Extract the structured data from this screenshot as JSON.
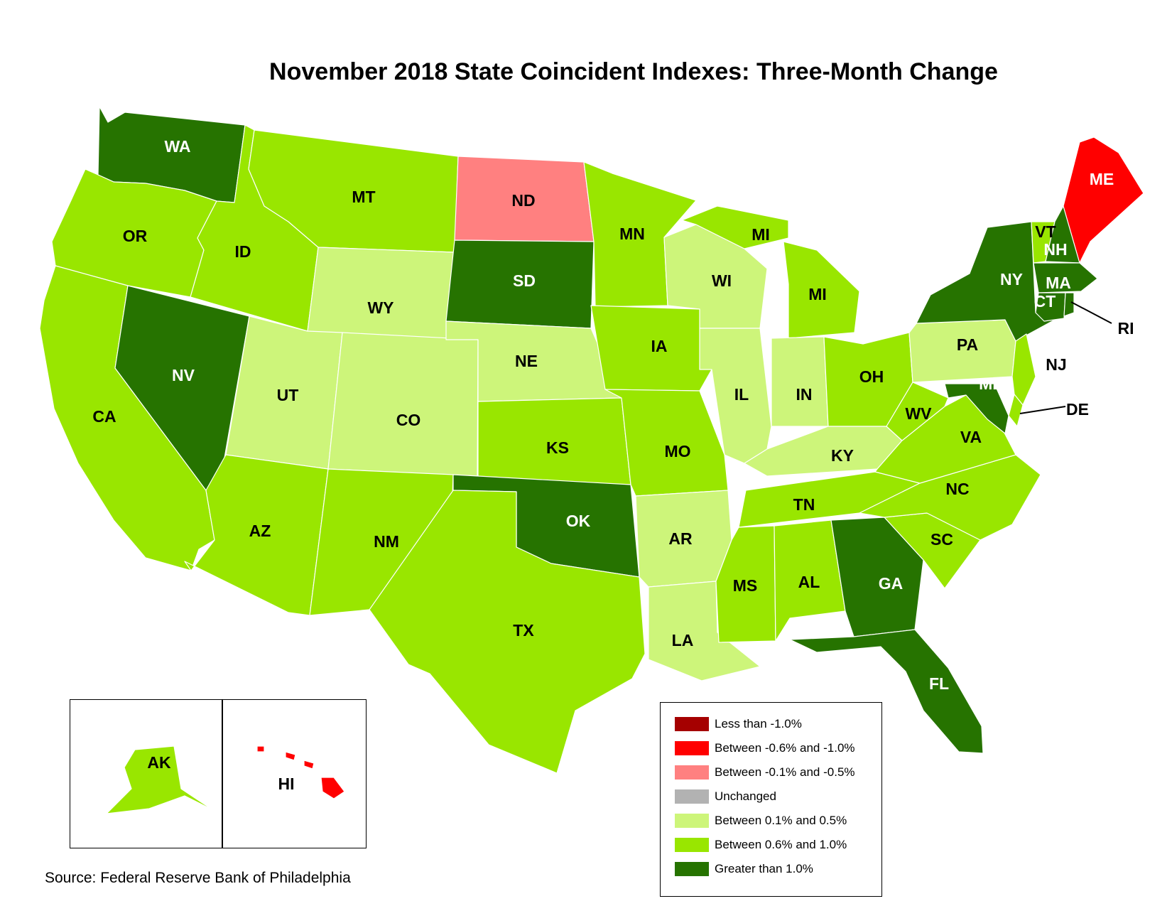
{
  "title": "November 2018 State Coincident Indexes: Three-Month Change",
  "source": "Source: Federal Reserve Bank of Philadelphia",
  "colors": {
    "lt_neg1": "#a50000",
    "neg06_neg1": "#ff0000",
    "neg01_neg05": "#ff8080",
    "unchanged": "#b2b2b2",
    "p01_p05": "#cdf57a",
    "p06_p1": "#99e600",
    "gt1": "#267300"
  },
  "legend": [
    {
      "label": "Less than -1.0%",
      "color": "#a50000"
    },
    {
      "label": "Between -0.6% and -1.0%",
      "color": "#ff0000"
    },
    {
      "label": "Between -0.1% and -0.5%",
      "color": "#ff8080"
    },
    {
      "label": "Unchanged",
      "color": "#b2b2b2"
    },
    {
      "label": "Between 0.1% and 0.5%",
      "color": "#cdf57a"
    },
    {
      "label": "Between 0.6% and 1.0%",
      "color": "#99e600"
    },
    {
      "label": "Greater than 1.0%",
      "color": "#267300"
    }
  ],
  "states": {
    "WA": "Greater than 1.0%",
    "OR": "Between 0.6% and 1.0%",
    "CA": "Between 0.6% and 1.0%",
    "ID": "Between 0.6% and 1.0%",
    "NV": "Greater than 1.0%",
    "MT": "Between 0.6% and 1.0%",
    "WY": "Between 0.1% and 0.5%",
    "UT": "Between 0.1% and 0.5%",
    "AZ": "Between 0.6% and 1.0%",
    "CO": "Between 0.1% and 0.5%",
    "NM": "Between 0.6% and 1.0%",
    "ND": "Between -0.1% and -0.5%",
    "SD": "Greater than 1.0%",
    "NE": "Between 0.1% and 0.5%",
    "KS": "Between 0.6% and 1.0%",
    "OK": "Greater than 1.0%",
    "TX": "Between 0.6% and 1.0%",
    "MN": "Between 0.6% and 1.0%",
    "IA": "Between 0.6% and 1.0%",
    "MO": "Between 0.6% and 1.0%",
    "AR": "Between 0.1% and 0.5%",
    "LA": "Between 0.1% and 0.5%",
    "WI": "Between 0.1% and 0.5%",
    "IL": "Between 0.1% and 0.5%",
    "MI": "Between 0.6% and 1.0%",
    "IN": "Between 0.1% and 0.5%",
    "OH": "Between 0.6% and 1.0%",
    "KY": "Between 0.1% and 0.5%",
    "TN": "Between 0.6% and 1.0%",
    "MS": "Between 0.6% and 1.0%",
    "AL": "Between 0.6% and 1.0%",
    "GA": "Greater than 1.0%",
    "FL": "Greater than 1.0%",
    "SC": "Between 0.6% and 1.0%",
    "NC": "Between 0.6% and 1.0%",
    "VA": "Between 0.6% and 1.0%",
    "WV": "Between 0.6% and 1.0%",
    "PA": "Between 0.1% and 0.5%",
    "NY": "Greater than 1.0%",
    "VT": "Between 0.6% and 1.0%",
    "NH": "Greater than 1.0%",
    "ME": "Between -0.6% and -1.0%",
    "MA": "Greater than 1.0%",
    "CT": "Greater than 1.0%",
    "RI": "Greater than 1.0%",
    "NJ": "Between 0.6% and 1.0%",
    "DE": "Between 0.6% and 1.0%",
    "MD": "Greater than 1.0%",
    "AK": "Between 0.6% and 1.0%",
    "HI": "Between -0.6% and -1.0%"
  },
  "labels": {
    "WA": "WA",
    "OR": "OR",
    "CA": "CA",
    "ID": "ID",
    "NV": "NV",
    "MT": "MT",
    "WY": "WY",
    "UT": "UT",
    "AZ": "AZ",
    "CO": "CO",
    "NM": "NM",
    "ND": "ND",
    "SD": "SD",
    "NE": "NE",
    "KS": "KS",
    "OK": "OK",
    "TX": "TX",
    "MN": "MN",
    "IA": "IA",
    "MO": "MO",
    "AR": "AR",
    "LA": "LA",
    "WI": "WI",
    "IL": "IL",
    "MI_UP": "MI",
    "MI": "MI",
    "IN": "IN",
    "OH": "OH",
    "KY": "KY",
    "TN": "TN",
    "MS": "MS",
    "AL": "AL",
    "GA": "GA",
    "FL": "FL",
    "SC": "SC",
    "NC": "NC",
    "VA": "VA",
    "WV": "WV",
    "PA": "PA",
    "NY": "NY",
    "VT": "VT",
    "NH": "NH",
    "ME": "ME",
    "MA": "MA",
    "CT": "CT",
    "RI": "RI",
    "NJ": "NJ",
    "DE": "DE",
    "MD": "MD",
    "AK": "AK",
    "HI": "HI"
  }
}
